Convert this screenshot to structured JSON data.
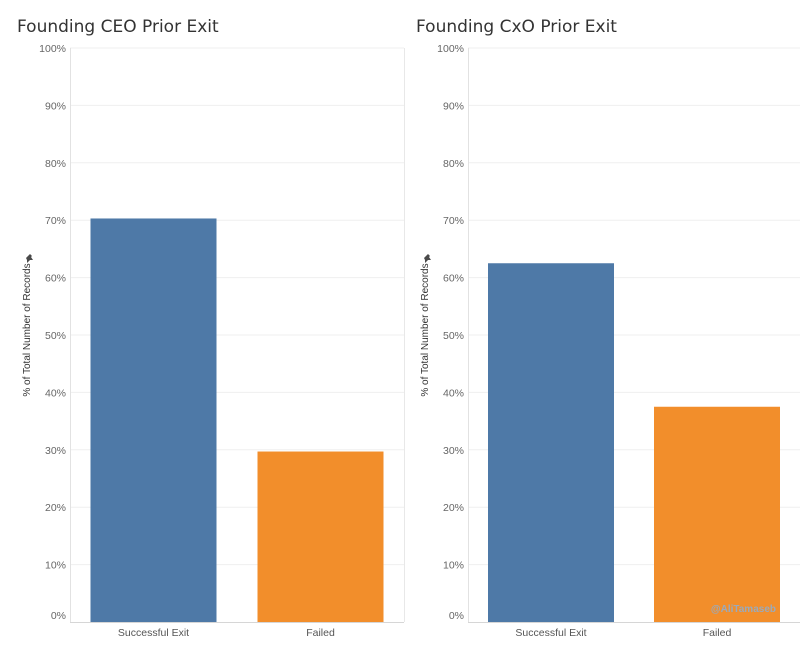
{
  "chart_data": [
    {
      "type": "bar",
      "title": "Founding CEO Prior Exit",
      "ylabel": "% of Total Number of Records",
      "categories": [
        "Successful Exit",
        "Failed"
      ],
      "values": [
        70.3,
        29.7
      ],
      "colors": [
        "#4e79a7",
        "#f28e2b"
      ],
      "ylim": [
        0,
        100
      ],
      "yticks": [
        "0%",
        "10%",
        "20%",
        "30%",
        "40%",
        "50%",
        "60%",
        "70%",
        "80%",
        "90%",
        "100%"
      ]
    },
    {
      "type": "bar",
      "title": "Founding CxO Prior Exit",
      "ylabel": "% of Total Number of Records",
      "categories": [
        "Successful Exit",
        "Failed"
      ],
      "values": [
        62.5,
        37.5
      ],
      "colors": [
        "#4e79a7",
        "#f28e2b"
      ],
      "ylim": [
        0,
        100
      ],
      "yticks": [
        "0%",
        "10%",
        "20%",
        "30%",
        "40%",
        "50%",
        "60%",
        "70%",
        "80%",
        "90%",
        "100%"
      ],
      "watermark": "@AliTamaseb"
    }
  ]
}
